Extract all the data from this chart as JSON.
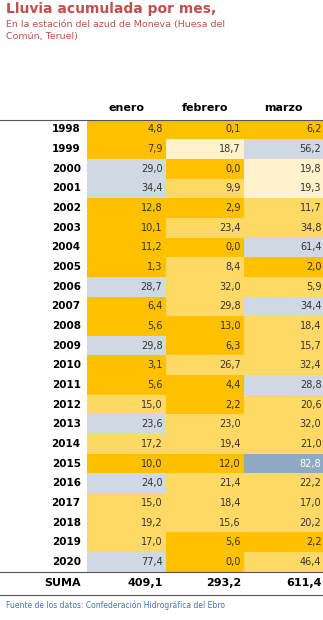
{
  "title1": "Lluvia acumulada por mes,",
  "title2": "En la estación del azud de Moneva (Huesa del\nComún, Teruel)",
  "col_headers": [
    "enero",
    "febrero",
    "marzo"
  ],
  "footer": "Fuente de los datos: Confederación Hidrográfica del Ebro",
  "years": [
    1998,
    1999,
    2000,
    2001,
    2002,
    2003,
    2004,
    2005,
    2006,
    2007,
    2008,
    2009,
    2010,
    2011,
    2012,
    2013,
    2014,
    2015,
    2016,
    2017,
    2018,
    2019,
    2020
  ],
  "enero": [
    4.8,
    7.9,
    29.0,
    34.4,
    12.8,
    10.1,
    11.2,
    1.3,
    28.7,
    6.4,
    5.6,
    29.8,
    3.1,
    5.6,
    15.0,
    23.6,
    17.2,
    10.0,
    24.0,
    15.0,
    19.2,
    17.0,
    77.4
  ],
  "febrero": [
    0.1,
    18.7,
    0.0,
    9.9,
    2.9,
    23.4,
    0.0,
    8.4,
    32.0,
    29.8,
    13.0,
    6.3,
    26.7,
    4.4,
    2.2,
    23.0,
    19.4,
    12.0,
    21.4,
    18.4,
    15.6,
    5.6,
    0.0
  ],
  "marzo": [
    6.2,
    56.2,
    19.8,
    19.3,
    11.7,
    34.8,
    61.4,
    2.0,
    5.9,
    34.4,
    18.4,
    15.7,
    32.4,
    28.8,
    20.6,
    32.0,
    21.0,
    82.8,
    22.2,
    17.0,
    20.2,
    2.2,
    46.4
  ],
  "suma_enero": 409.1,
  "suma_febrero": 293.2,
  "suma_marzo": 611.4,
  "enero_colors": [
    "#FFC000",
    "#FFC000",
    "#D0D8E4",
    "#D0D8E4",
    "#FFC000",
    "#FFC000",
    "#FFC000",
    "#FFC000",
    "#D0D8E4",
    "#FFC000",
    "#FFC000",
    "#D0D8E4",
    "#FFC000",
    "#FFC000",
    "#FFD966",
    "#D0D8E4",
    "#FFD966",
    "#FFC000",
    "#D0D8E4",
    "#FFD966",
    "#FFD966",
    "#FFD966",
    "#D0D8E4"
  ],
  "febrero_colors": [
    "#FFC000",
    "#FFF2CC",
    "#FFC000",
    "#FFD966",
    "#FFC000",
    "#FFD966",
    "#FFC000",
    "#FFD966",
    "#FFD966",
    "#FFD966",
    "#FFC000",
    "#FFC000",
    "#FFD966",
    "#FFC000",
    "#FFC000",
    "#FFD966",
    "#FFD966",
    "#FFC000",
    "#FFD966",
    "#FFD966",
    "#FFD966",
    "#FFC000",
    "#FFC000"
  ],
  "marzo_colors": [
    "#FFC000",
    "#D0D8E4",
    "#FFF2CC",
    "#FFF2CC",
    "#FFD966",
    "#FFD966",
    "#D0D8E4",
    "#FFC000",
    "#FFD966",
    "#D0D8E4",
    "#FFD966",
    "#FFD966",
    "#FFD966",
    "#D0D8E4",
    "#FFD966",
    "#FFD966",
    "#FFD966",
    "#8EA9C1",
    "#FFD966",
    "#FFD966",
    "#FFD966",
    "#FFC000",
    "#FFD966"
  ],
  "bg_color": "#FFFFFF",
  "title_color": "#C0504D",
  "footer_color": "#4472C4"
}
